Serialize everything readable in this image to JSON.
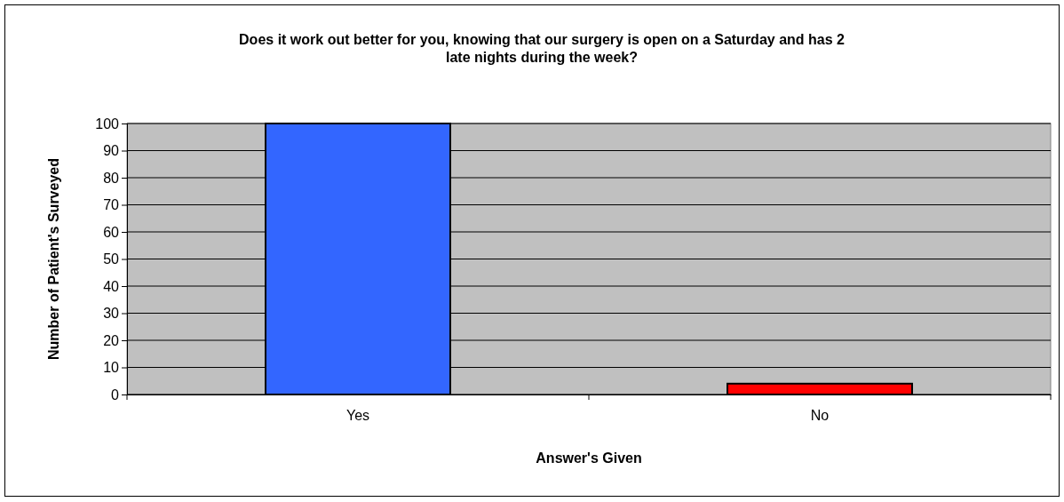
{
  "chart_data": {
    "type": "bar",
    "title": "Does it work out better for you, knowing that our surgery is open on a Saturday and has 2 late nights during the week?",
    "xlabel": "Answer's Given",
    "ylabel": "Number of Patient's Surveyed",
    "categories": [
      "Yes",
      "No"
    ],
    "series": [
      {
        "values": [
          100,
          4
        ],
        "colors": [
          "#3366ff",
          "#ff0000"
        ]
      }
    ],
    "ylim": [
      0,
      100
    ],
    "yticks": [
      0,
      10,
      20,
      30,
      40,
      50,
      60,
      70,
      80,
      90,
      100
    ],
    "grid": "y"
  }
}
